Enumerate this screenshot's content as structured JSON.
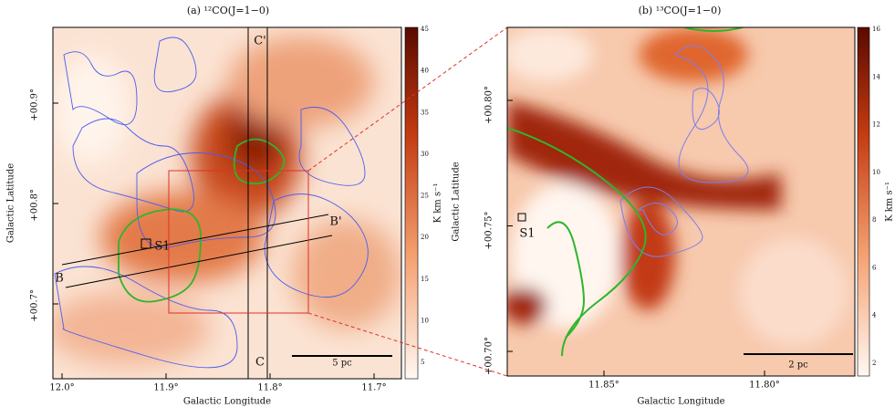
{
  "panels": [
    {
      "title": "(a) ¹²CO(J=1−0)",
      "x_label": "Galactic Longitude",
      "y_label": "Galactic Latitude",
      "x_ticks": [
        "12.0°",
        "11.9°",
        "11.8°",
        "11.7°"
      ],
      "y_ticks": [
        "+00.9°",
        "+00.8°",
        "+00.7°"
      ],
      "colorbar_ticks": [
        "45",
        "40",
        "35",
        "30",
        "25",
        "20",
        "15",
        "10",
        "5"
      ],
      "colorbar_label": "K km s⁻¹",
      "annotations": {
        "scale": "5 pc",
        "b": "B",
        "b_prime": "B'",
        "c": "C",
        "c_prime": "C'",
        "source": "S1"
      }
    },
    {
      "title": "(b) ¹³CO(J=1−0)",
      "x_label": "Galactic Longitude",
      "y_label": "Galactic Latitude",
      "x_ticks": [
        "11.85°",
        "11.80°"
      ],
      "y_ticks": [
        "+00.80°",
        "+00.75°",
        "+00.70°"
      ],
      "colorbar_ticks": [
        "16",
        "14",
        "12",
        "10",
        "8",
        "6",
        "4",
        "2"
      ],
      "colorbar_label": "K km s⁻¹",
      "annotations": {
        "scale": "2 pc",
        "source": "S1"
      }
    }
  ]
}
